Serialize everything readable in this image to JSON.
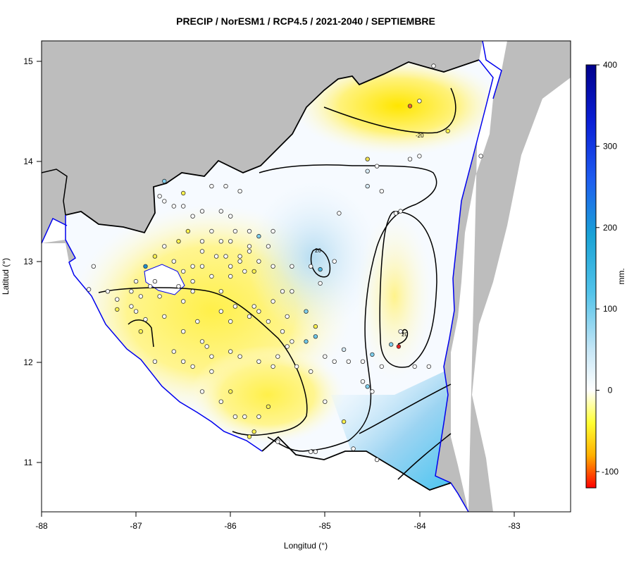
{
  "map": {
    "title": "PRECIP / NorESM1 / RCP4.5 / 2021-2040 / SEPTIEMBRE",
    "x_label": "Longitud (°)",
    "y_label": "Latitud (°)",
    "x_ticks": [
      "-88",
      "-87",
      "-86",
      "-85",
      "-84",
      "-83"
    ],
    "y_ticks": [
      "11",
      "12",
      "13",
      "14",
      "15"
    ],
    "lon_range": [
      -88,
      -82.4
    ],
    "lat_range": [
      10.5,
      15.2
    ],
    "contour_labels": [
      "-20",
      "20",
      "0",
      "20"
    ],
    "colors": {
      "land_outside": "#bdbdbd",
      "water": "#ffffff",
      "coastline": "#0000ee",
      "border": "#000000",
      "positive_max": "#00008b",
      "neutral": "#ffffff",
      "negative": "#ffff00",
      "negative_extreme": "#ff0000"
    }
  },
  "colorbar": {
    "unit_label": "mm.",
    "min": -120,
    "max": 400,
    "ticks": [
      "400",
      "300",
      "200",
      "100",
      "0",
      "-100"
    ],
    "tick_values": [
      400,
      300,
      200,
      100,
      0,
      -100
    ]
  }
}
